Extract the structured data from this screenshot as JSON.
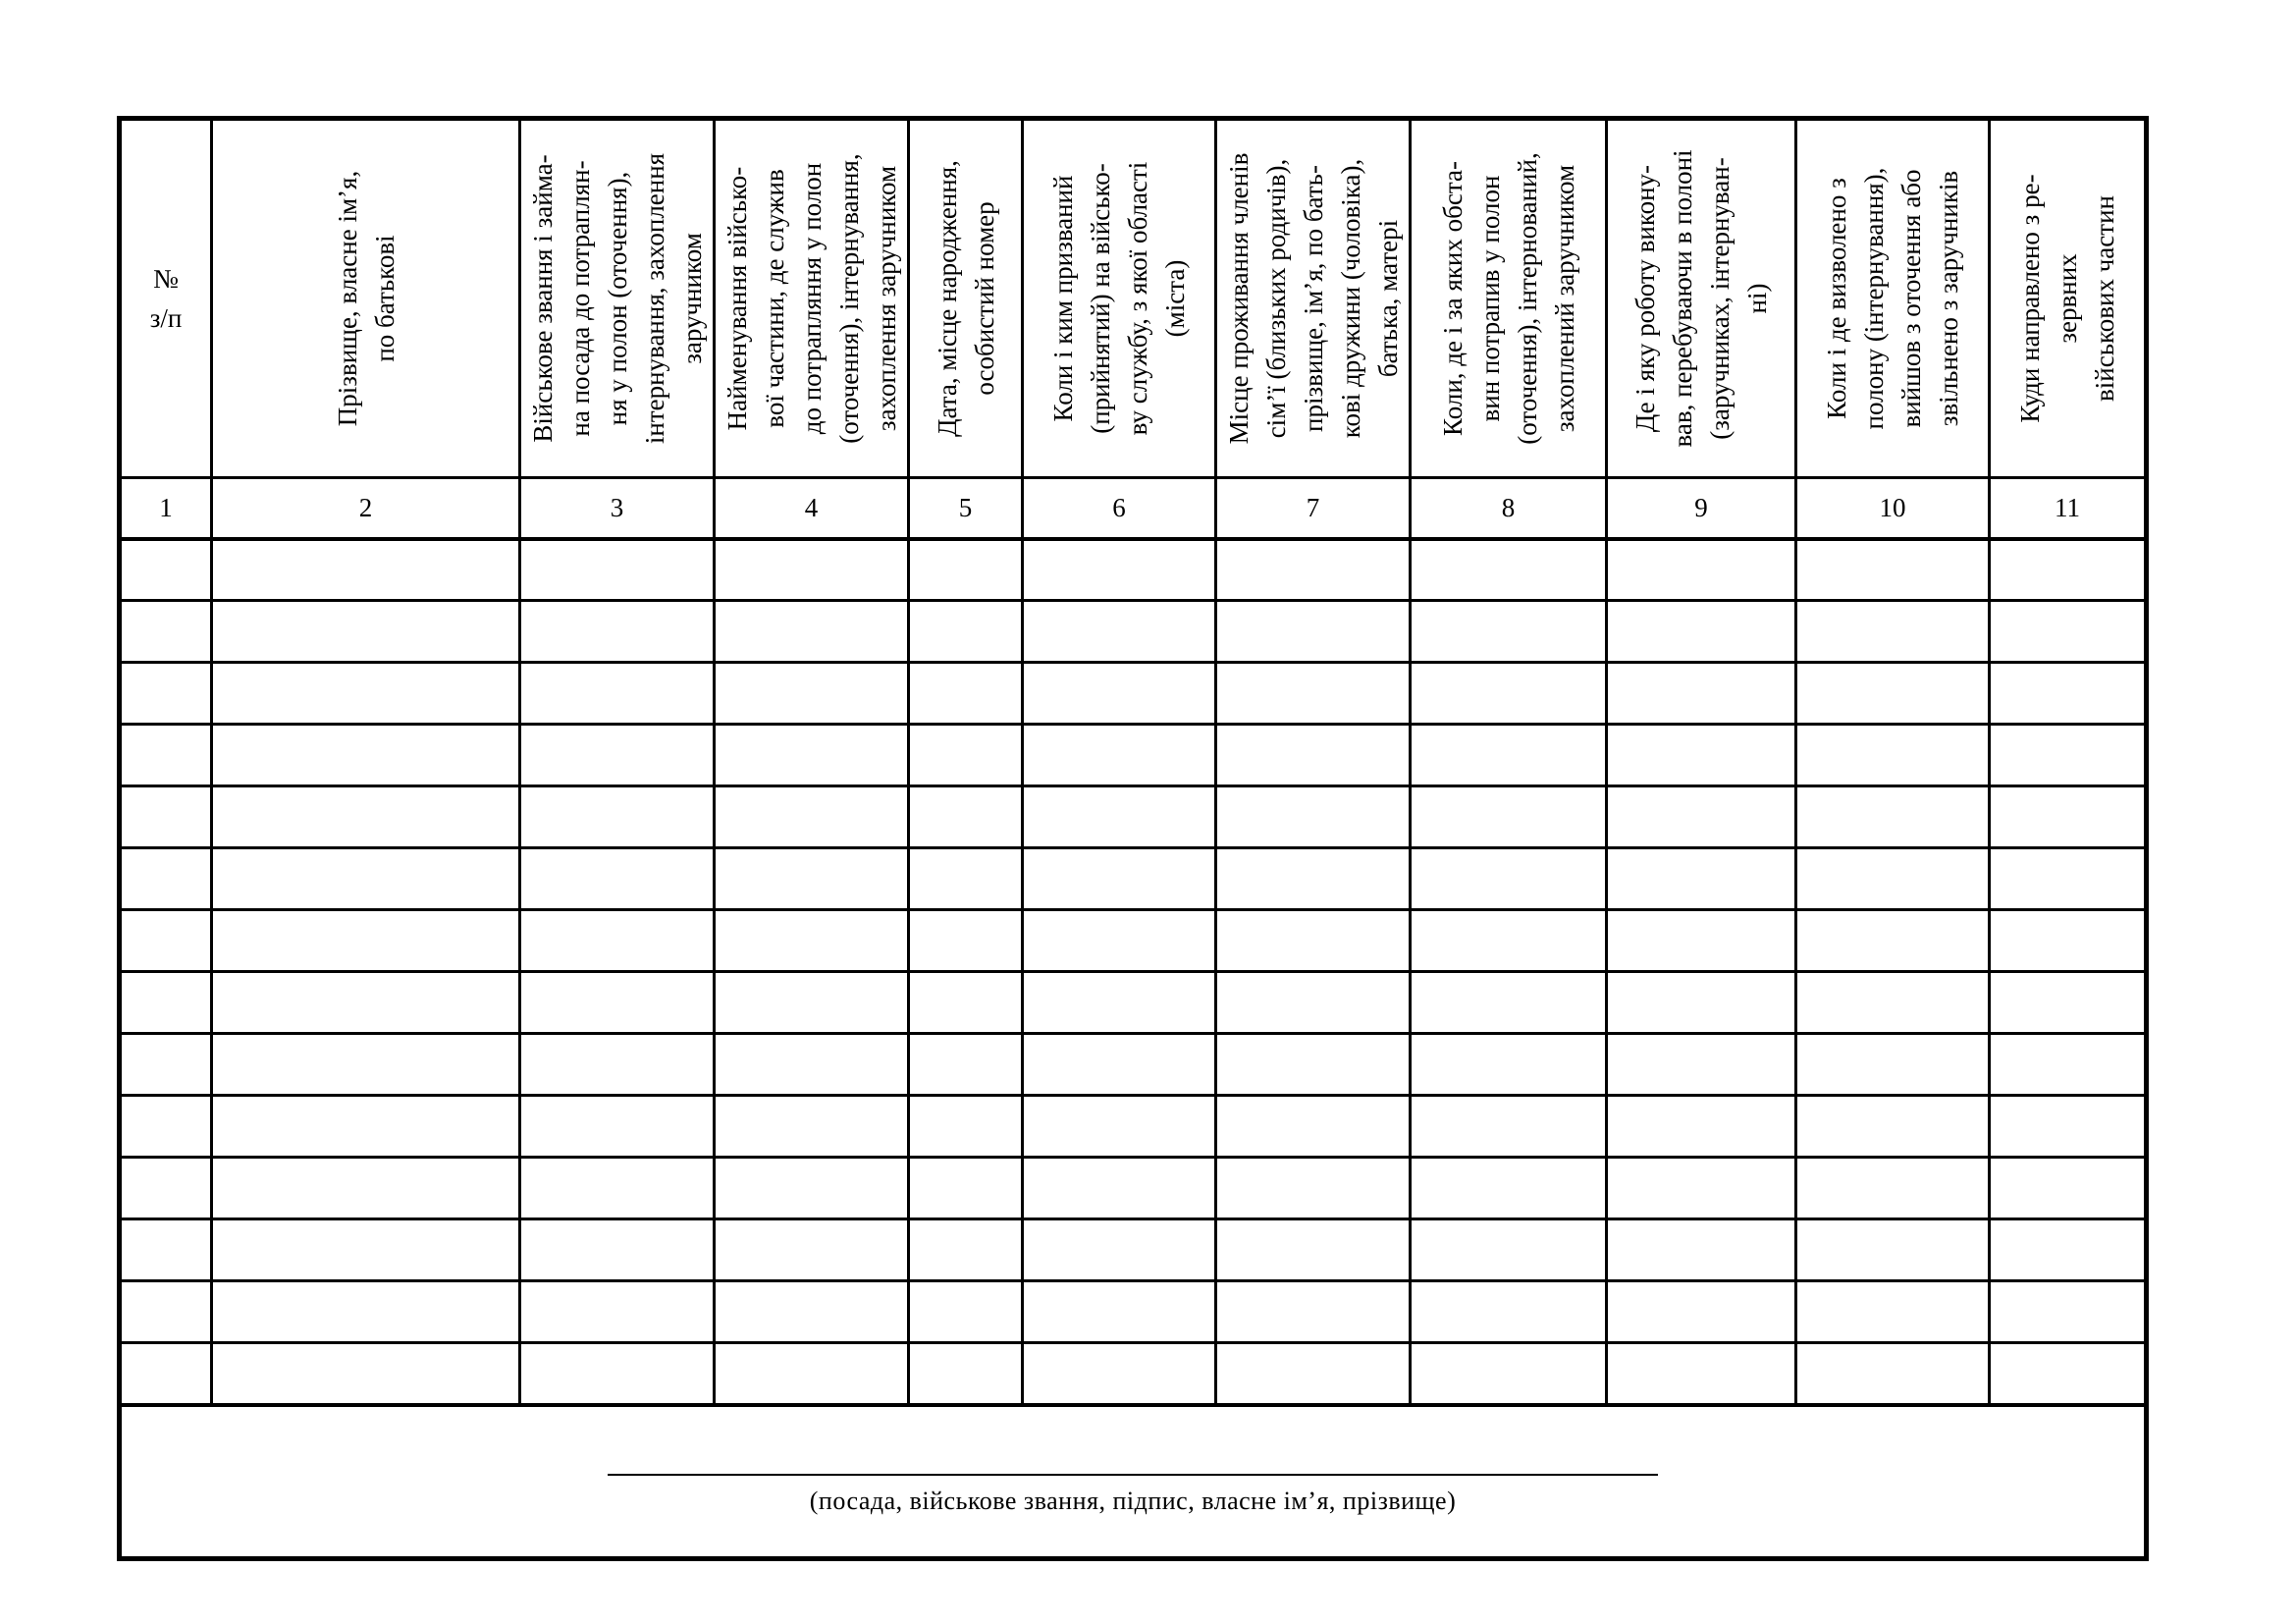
{
  "table": {
    "columns": [
      {
        "num": "1",
        "header": "№\nз/п"
      },
      {
        "num": "2",
        "header": "Прізвище, власне ім’я,\nпо батькові"
      },
      {
        "num": "3",
        "header": "Військове звання і займа-\nна посада до потраплян-\nня у полон (оточення),\nінтернування, захоплення\nзаручником"
      },
      {
        "num": "4",
        "header": "Найменування військо-\nвої частини, де служив\nдо потрапляння у полон\n(оточення), інтернування,\nзахоплення заручником"
      },
      {
        "num": "5",
        "header": "Дата, місце народження,\nособистий номер"
      },
      {
        "num": "6",
        "header": "Коли і ким призваний\n(прийнятий) на військо-\nву службу, з якої області\n(міста)"
      },
      {
        "num": "7",
        "header": "Місце проживання членів\nсім’ї (близьких родичів),\nпрізвище, ім’я, по бать-\nкові дружини (чоловіка),\nбатька, матері"
      },
      {
        "num": "8",
        "header": "Коли, де і за яких обста-\nвин потрапив у полон\n(оточення), інтернований,\nзахоплений заручником"
      },
      {
        "num": "9",
        "header": "Де і яку роботу викону-\nвав, перебуваючи в полоні\n(заручниках, інтернуван-\nні)"
      },
      {
        "num": "10",
        "header": "Коли і де визволено з\nполону (інтернування),\nвийшов з оточення або\nзвільнено з заручників"
      },
      {
        "num": "11",
        "header": "Куди направлено з ре-\nзервних\nвійськових частин"
      }
    ],
    "row_count": 14
  },
  "footer": {
    "caption": "(посада, військове звання, підпис, власне ім’я, прізвище)"
  }
}
